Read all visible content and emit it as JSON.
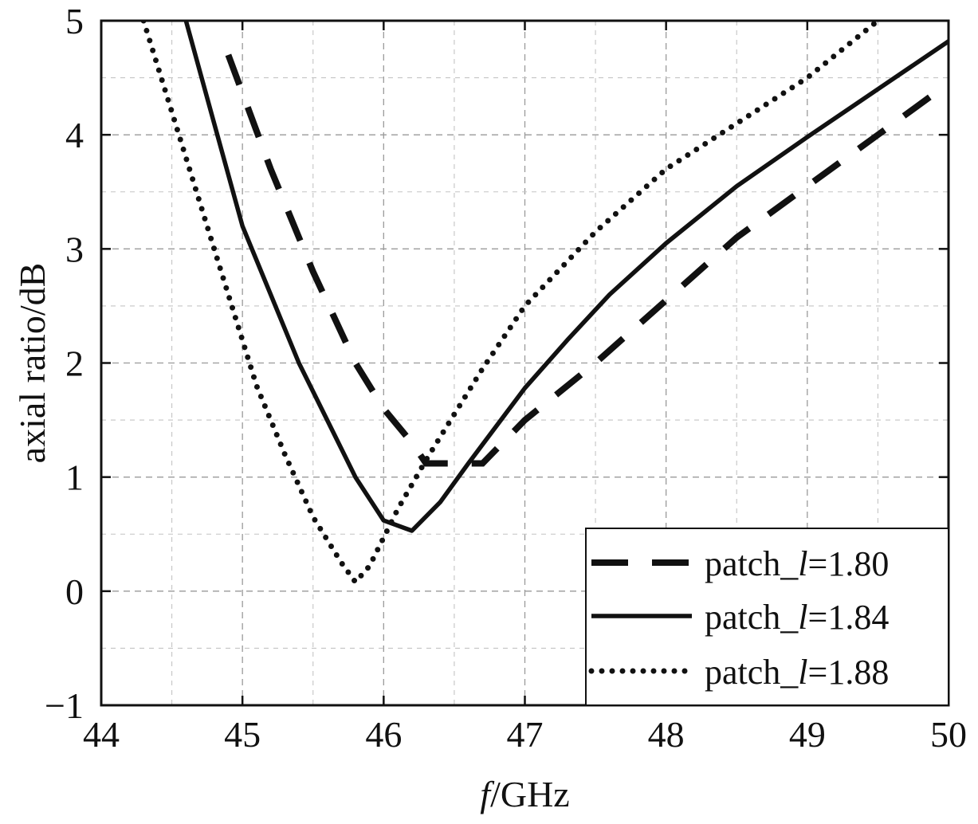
{
  "chart_data": {
    "type": "line",
    "xlabel_prefix": "f",
    "xlabel_suffix": "/GHz",
    "ylabel": "axial ratio/dB",
    "xlim": [
      44,
      50
    ],
    "ylim": [
      -1,
      5
    ],
    "xticks": [
      "44",
      "45",
      "46",
      "47",
      "48",
      "49",
      "50"
    ],
    "yticks": [
      "−1",
      "0",
      "1",
      "2",
      "3",
      "4",
      "5"
    ],
    "grid": true,
    "legend_position": "bottom-right",
    "series": [
      {
        "name_prefix": "patch_",
        "name_var": "l",
        "name_suffix": "=1.80",
        "style": "dashed",
        "x": [
          44.9,
          45.2,
          45.5,
          45.8,
          46.0,
          46.2,
          46.3,
          46.5,
          46.7,
          47.0,
          47.5,
          48.0,
          48.5,
          49.0,
          49.5,
          50.0
        ],
        "y": [
          4.7,
          3.7,
          2.8,
          2.0,
          1.6,
          1.3,
          1.12,
          1.12,
          1.12,
          1.5,
          2.0,
          2.55,
          3.1,
          3.55,
          4.0,
          4.45
        ]
      },
      {
        "name_prefix": "patch_",
        "name_var": "l",
        "name_suffix": "=1.84",
        "style": "solid",
        "x": [
          44.6,
          44.8,
          45.0,
          45.2,
          45.4,
          45.6,
          45.8,
          46.0,
          46.2,
          46.4,
          46.6,
          46.8,
          47.0,
          47.3,
          47.6,
          48.0,
          48.5,
          49.0,
          49.5,
          50.0
        ],
        "y": [
          5.0,
          4.1,
          3.2,
          2.6,
          2.0,
          1.5,
          1.0,
          0.62,
          0.53,
          0.78,
          1.12,
          1.45,
          1.78,
          2.2,
          2.6,
          3.05,
          3.55,
          3.98,
          4.4,
          4.82
        ]
      },
      {
        "name_prefix": "patch_",
        "name_var": "l",
        "name_suffix": "=1.88",
        "style": "dotted",
        "x": [
          44.3,
          44.5,
          44.7,
          44.9,
          45.1,
          45.3,
          45.5,
          45.7,
          45.8,
          45.9,
          46.1,
          46.3,
          46.5,
          46.7,
          47.0,
          47.5,
          48.0,
          48.5,
          49.0,
          49.5
        ],
        "y": [
          5.0,
          4.2,
          3.4,
          2.6,
          1.8,
          1.2,
          0.65,
          0.25,
          0.08,
          0.22,
          0.72,
          1.15,
          1.55,
          1.95,
          2.5,
          3.15,
          3.7,
          4.1,
          4.5,
          5.0
        ]
      }
    ]
  }
}
